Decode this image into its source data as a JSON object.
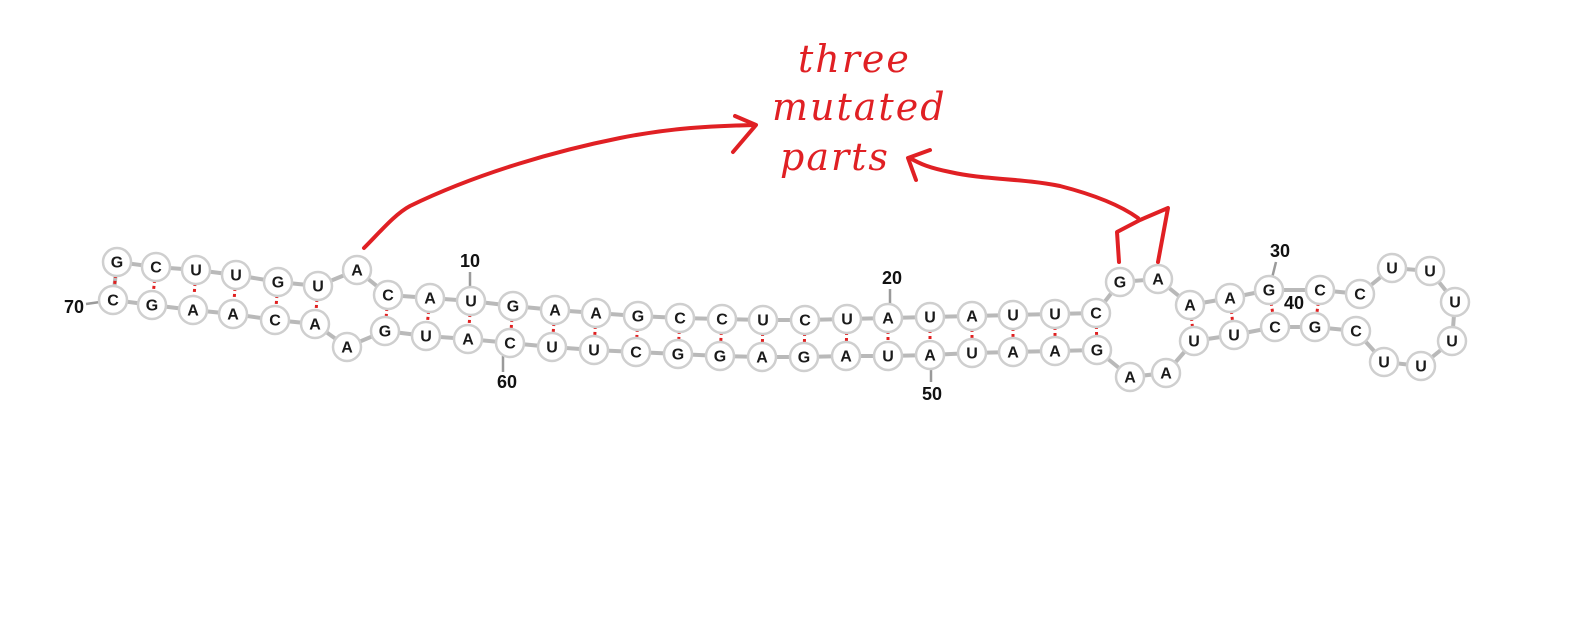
{
  "diagram": {
    "left_arm": {
      "outer": [
        "G",
        "C",
        "U",
        "U",
        "G",
        "U"
      ],
      "inner": [
        "C",
        "G",
        "A",
        "A",
        "C",
        "A"
      ],
      "bulge": "A"
    },
    "stem_top": [
      "A",
      "C",
      "A",
      "U",
      "G",
      "A",
      "A",
      "G",
      "C",
      "C",
      "U",
      "C",
      "U",
      "A",
      "U",
      "A",
      "U",
      "U",
      "C"
    ],
    "stem_bottom": [
      "A",
      "G",
      "U",
      "A",
      "C",
      "U",
      "U",
      "C",
      "G",
      "G",
      "A",
      "G",
      "A",
      "U",
      "A",
      "U",
      "A",
      "A",
      "G"
    ],
    "junction_top": [
      "G",
      "A",
      "A",
      "A"
    ],
    "junction_bottom": [
      "A",
      "A",
      "U",
      "U"
    ],
    "hairpin_left": [
      "G",
      "C"
    ],
    "hairpin_right": [
      "C",
      "G"
    ],
    "hairpin_loop": [
      "U",
      "U",
      "U",
      "U",
      "U",
      "U"
    ],
    "position_labels": {
      "p10": "10",
      "p20": "20",
      "p30": "30",
      "p40": "40",
      "p50": "50",
      "p60": "60",
      "p70": "70"
    }
  },
  "annotation": {
    "line1": "three",
    "line2": "mutated",
    "line3": "parts",
    "color": "#e02024"
  }
}
